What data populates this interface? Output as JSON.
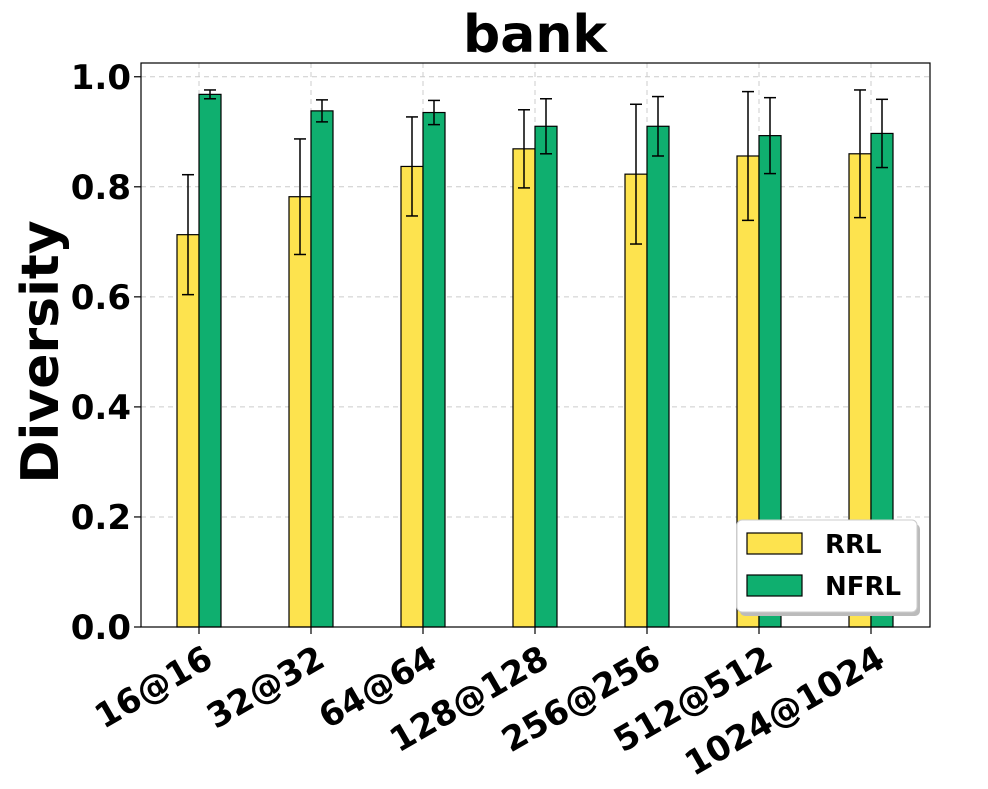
{
  "chart_data": {
    "type": "bar",
    "title": "bank",
    "xlabel": "",
    "ylabel": "Diversity",
    "categories": [
      "16@16",
      "32@32",
      "64@64",
      "128@128",
      "256@256",
      "512@512",
      "1024@1024"
    ],
    "series": [
      {
        "name": "RRL",
        "color": "#FDE34E",
        "values": [
          0.713,
          0.782,
          0.837,
          0.869,
          0.823,
          0.856,
          0.86
        ],
        "errors": [
          0.109,
          0.105,
          0.09,
          0.071,
          0.127,
          0.117,
          0.116
        ]
      },
      {
        "name": "NFRL",
        "color": "#0FAF6F",
        "values": [
          0.968,
          0.938,
          0.935,
          0.91,
          0.91,
          0.893,
          0.897
        ],
        "errors": [
          0.008,
          0.02,
          0.022,
          0.05,
          0.054,
          0.069,
          0.062
        ]
      }
    ],
    "ylim": [
      0,
      1.025
    ],
    "yticks": [
      "0.0",
      "0.2",
      "0.4",
      "0.6",
      "0.8",
      "1.0"
    ],
    "grid": true,
    "legend_position": "lower right"
  }
}
